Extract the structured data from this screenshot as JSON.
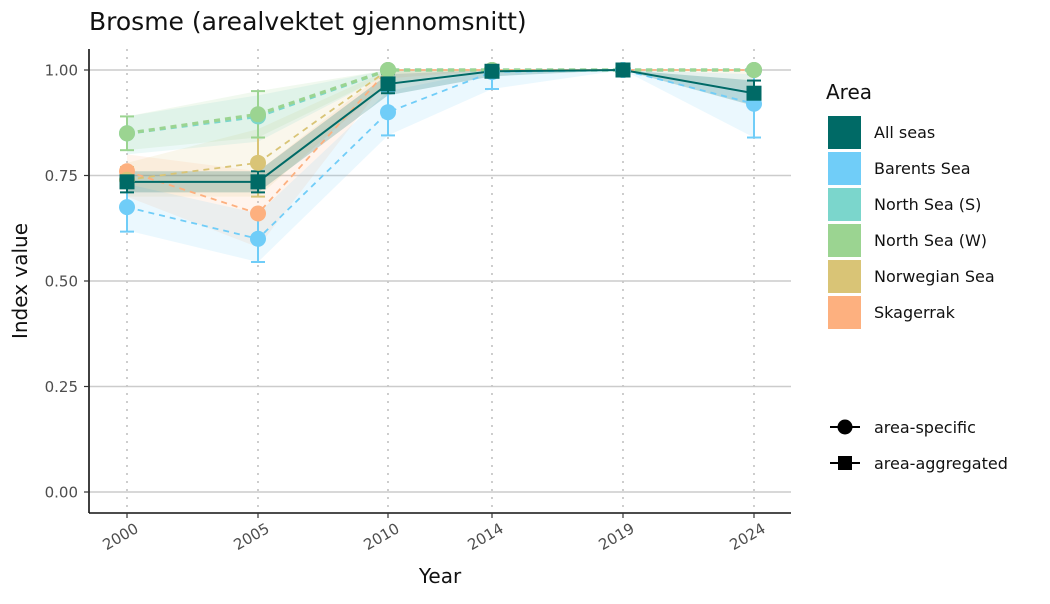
{
  "chart_data": {
    "type": "line",
    "title": "Brosme (arealvektet gjennomsnitt)",
    "xlabel": "Year",
    "ylabel": "Index value",
    "x": [
      "2000",
      "2005",
      "2010",
      "2014",
      "2019",
      "2024"
    ],
    "ylim": [
      0,
      1
    ],
    "yticks": [
      "0.00",
      "0.25",
      "0.50",
      "0.75",
      "1.00"
    ],
    "ytick_values": [
      0,
      0.25,
      0.5,
      0.75,
      1.0
    ],
    "grid": "horizontal major y gridlines, dotted vertical lines at each year",
    "legend": {
      "title": "Area",
      "placement": "right",
      "shape_items": [
        "area-specific",
        "area-aggregated"
      ]
    },
    "series": [
      {
        "name": "Skagerrak",
        "color": "#FDB07F",
        "kind": "area-specific",
        "values": [
          0.76,
          0.66,
          1.0,
          1.0,
          1.0,
          1.0
        ],
        "band_low": [
          0.7,
          0.58,
          0.98,
          1.0,
          1.0,
          1.0
        ],
        "band_high": [
          0.8,
          0.76,
          1.0,
          1.0,
          1.0,
          1.0
        ]
      },
      {
        "name": "Norwegian Sea",
        "color": "#D9C476",
        "kind": "area-specific",
        "values": [
          0.74,
          0.78,
          1.0,
          1.0,
          1.0,
          1.0
        ],
        "band_low": [
          0.7,
          0.7,
          0.97,
          1.0,
          1.0,
          0.95
        ],
        "band_high": [
          0.78,
          0.86,
          1.0,
          1.0,
          1.0,
          1.0
        ],
        "error": [
          [
            0.72,
            0.77
          ],
          [
            0.7,
            0.84
          ],
          null,
          null,
          null,
          null
        ]
      },
      {
        "name": "North Sea (S)",
        "color": "#7BD6CC",
        "kind": "area-specific",
        "values": [
          0.85,
          0.89,
          1.0,
          1.0,
          1.0,
          1.0
        ],
        "band_low": [
          0.8,
          0.83,
          0.99,
          1.0,
          1.0,
          1.0
        ],
        "band_high": [
          0.89,
          0.94,
          1.0,
          1.0,
          1.0,
          1.0
        ]
      },
      {
        "name": "North Sea (W)",
        "color": "#9BD491",
        "kind": "area-specific",
        "values": [
          0.85,
          0.895,
          1.0,
          1.0,
          1.0,
          1.0
        ],
        "band_low": [
          0.81,
          0.84,
          0.99,
          1.0,
          1.0,
          1.0
        ],
        "band_high": [
          0.89,
          0.95,
          1.0,
          1.0,
          1.0,
          1.0
        ],
        "error": [
          [
            0.81,
            0.89
          ],
          [
            0.84,
            0.95
          ],
          null,
          null,
          null,
          null
        ]
      },
      {
        "name": "Barents Sea",
        "color": "#70CDF8",
        "kind": "area-specific",
        "values": [
          0.675,
          0.6,
          0.9,
          0.995,
          1.0,
          0.92
        ],
        "band_low": [
          0.62,
          0.545,
          0.845,
          0.955,
          1.0,
          0.84
        ],
        "band_high": [
          0.73,
          0.66,
          0.95,
          1.0,
          1.0,
          0.99
        ],
        "error": [
          [
            0.617,
            0.733
          ],
          [
            0.545,
            0.66
          ],
          [
            0.845,
            0.95
          ],
          [
            0.955,
            1.0
          ],
          null,
          [
            0.84,
            0.99
          ]
        ]
      },
      {
        "name": "All seas",
        "color": "#006A66",
        "kind": "area-aggregated",
        "values": [
          0.735,
          0.735,
          0.967,
          0.997,
          1.0,
          0.945
        ],
        "band_low": [
          0.71,
          0.71,
          0.94,
          0.985,
          1.0,
          0.915
        ],
        "band_high": [
          0.76,
          0.76,
          0.99,
          1.0,
          1.0,
          0.975
        ],
        "error": [
          [
            0.71,
            0.76
          ],
          [
            0.71,
            0.76
          ],
          [
            0.945,
            0.99
          ],
          [
            0.985,
            1.0
          ],
          null,
          [
            0.915,
            0.975
          ]
        ]
      }
    ],
    "legend_order": [
      "All seas",
      "Barents Sea",
      "North Sea (S)",
      "North Sea (W)",
      "Norwegian Sea",
      "Skagerrak"
    ]
  }
}
